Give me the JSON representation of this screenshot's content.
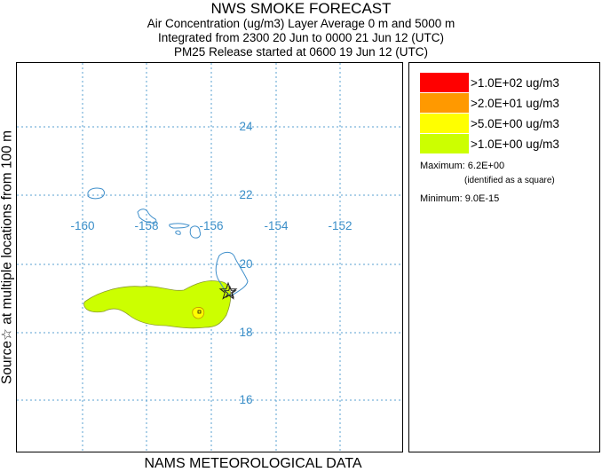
{
  "title": {
    "main": "NWS SMOKE FORECAST",
    "line1": "Air Concentration (ug/m3) Layer Average    0 m and  5000 m",
    "line2": "Integrated from 2300 20 Jun to 0000 21 Jun 12 (UTC)",
    "line3": "PM25 Release started at 0600 19 Jun 12 (UTC)"
  },
  "side_label": "Source☆   at multiple locations   from   100 m",
  "bottom_label": "NAMS METEOROLOGICAL DATA",
  "map": {
    "lon_labels": [
      "-160",
      "-158",
      "-156",
      "-154",
      "-152"
    ],
    "lat_labels": [
      "24",
      "22",
      "20",
      "18",
      "16"
    ],
    "colors": {
      "grid": "#5aa0d0",
      "coast": "#3f8fcb",
      "label": "#3a8ec8"
    }
  },
  "legend": {
    "items": [
      {
        "label": ">1.0E+02 ug/m3",
        "color": "#ff0000"
      },
      {
        "label": ">2.0E+01 ug/m3",
        "color": "#ff9900"
      },
      {
        "label": ">5.0E+00 ug/m3",
        "color": "#ffff00"
      },
      {
        "label": ">1.0E+00 ug/m3",
        "color": "#ccff00"
      }
    ],
    "maximum": "Maximum: 6.2E+00",
    "maximum_note": "(identified as a square)",
    "minimum": "Minimum: 9.0E-15"
  }
}
